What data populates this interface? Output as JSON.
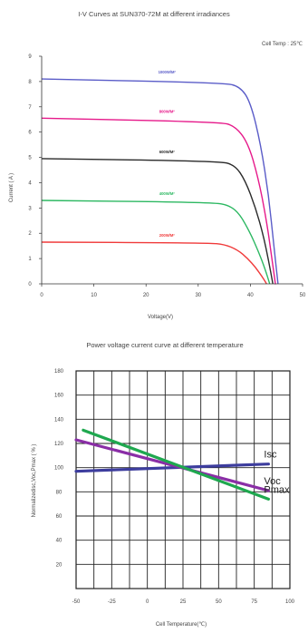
{
  "chart_data": [
    {
      "type": "line",
      "title": "I-V Curves at SUN370-72M at different irradiances",
      "subtitle": "Cell Temp : 25℃",
      "xlabel": "Voltage(V)",
      "ylabel": "Current ( A )",
      "xlim": [
        0,
        50
      ],
      "ylim": [
        0,
        9
      ],
      "xticks": [
        "0",
        "10",
        "20",
        "30",
        "40",
        "50"
      ],
      "yticks": [
        "0",
        "1",
        "2",
        "3",
        "4",
        "5",
        "6",
        "7",
        "8",
        "9"
      ],
      "grid": false,
      "series": [
        {
          "name": "1000W/M²",
          "color": "#5a5cc8",
          "x": [
            0,
            35,
            38,
            40,
            42,
            43.5,
            44.5,
            45.3
          ],
          "y": [
            8.1,
            7.95,
            7.8,
            7.2,
            5.5,
            3.5,
            1.5,
            0
          ]
        },
        {
          "name": "800W/M²",
          "color": "#e6198a",
          "x": [
            0,
            34,
            37,
            39.5,
            41.5,
            43,
            44,
            44.8
          ],
          "y": [
            6.55,
            6.4,
            6.25,
            5.6,
            4.2,
            2.6,
            1.2,
            0
          ]
        },
        {
          "name": "600W/M²",
          "color": "#2a2a2a",
          "x": [
            0,
            34,
            37,
            39,
            41,
            42.5,
            43.5,
            44.3
          ],
          "y": [
            4.95,
            4.85,
            4.7,
            4.1,
            3.0,
            1.9,
            0.9,
            0
          ]
        },
        {
          "name": "400W/M²",
          "color": "#2db862",
          "x": [
            0,
            33,
            36,
            38,
            40,
            41.5,
            42.8,
            43.7
          ],
          "y": [
            3.3,
            3.22,
            3.1,
            2.75,
            2.0,
            1.3,
            0.6,
            0
          ]
        },
        {
          "name": "200W/M²",
          "color": "#f03a3a",
          "x": [
            0,
            32,
            35,
            37.5,
            39.5,
            41,
            42.2,
            43.1
          ],
          "y": [
            1.65,
            1.62,
            1.56,
            1.35,
            1.0,
            0.65,
            0.3,
            0
          ]
        }
      ]
    },
    {
      "type": "line",
      "title": "Power voltage current curve at different temperature",
      "xlabel": "Cell Temperature(℃)",
      "ylabel": "Normalizedisc,Voc,Pmax ( % )",
      "xlim": [
        -50,
        100
      ],
      "ylim": [
        0,
        180
      ],
      "xticks": [
        "-50",
        "-25",
        "0",
        "25",
        "50",
        "75",
        "100"
      ],
      "yticks": [
        "20",
        "40",
        "60",
        "80",
        "100",
        "120",
        "140",
        "160",
        "180"
      ],
      "grid": true,
      "series": [
        {
          "name": "Isc",
          "color": "#3d3d9e",
          "x": [
            -50,
            85
          ],
          "y": [
            97,
            103
          ]
        },
        {
          "name": "Voc",
          "color": "#8a2ea6",
          "x": [
            -50,
            85
          ],
          "y": [
            123,
            81
          ]
        },
        {
          "name": "Pmax",
          "color": "#1fa84f",
          "x": [
            -45,
            85
          ],
          "y": [
            131,
            74
          ]
        }
      ]
    }
  ]
}
